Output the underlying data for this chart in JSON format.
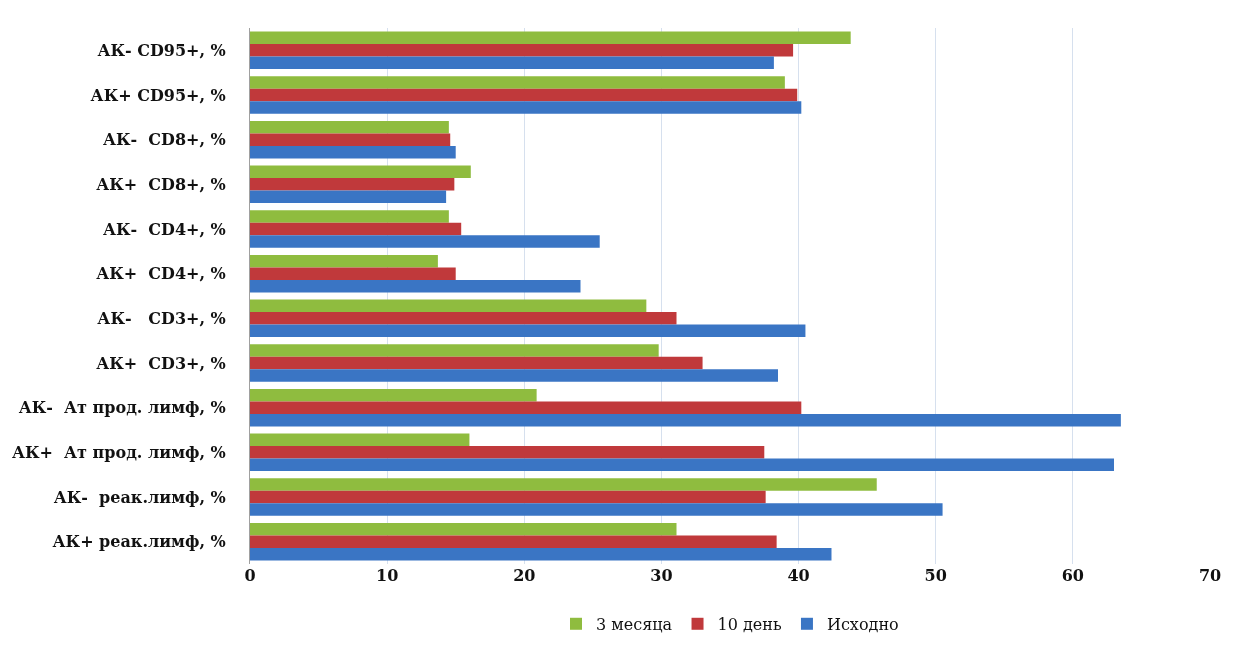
{
  "chart_data": {
    "type": "bar",
    "orientation": "horizontal",
    "categories": [
      "АК- CD95+, %",
      "АК+ CD95+, %",
      "АК-  CD8+, %",
      "АК+  CD8+, %",
      "АК-  CD4+, %",
      "АК+  CD4+, %",
      "АК-   CD3+, %",
      "АК+  CD3+, %",
      "АК-  Ат прод. лимф, %",
      "АК+  Ат прод. лимф, %",
      "АК-  реак.лимф, %",
      "АК+ реак.лимф, %"
    ],
    "series": [
      {
        "name": "3 месяца",
        "color": "#8fbc3f",
        "values": [
          43.8,
          39.0,
          14.5,
          16.1,
          14.5,
          13.7,
          28.9,
          29.8,
          20.9,
          16.0,
          45.7,
          31.1
        ]
      },
      {
        "name": "10 день",
        "color": "#c0393b",
        "values": [
          39.6,
          39.9,
          14.6,
          14.9,
          15.4,
          15.0,
          31.1,
          33.0,
          40.2,
          37.5,
          37.6,
          38.4
        ]
      },
      {
        "name": "Исходно",
        "color": "#3a75c4",
        "values": [
          38.2,
          40.2,
          15.0,
          14.3,
          25.5,
          24.1,
          40.5,
          38.5,
          63.5,
          63.0,
          50.5,
          42.4
        ]
      }
    ],
    "xlim": [
      0,
      70
    ],
    "xticks": [
      0,
      10,
      20,
      30,
      40,
      50,
      60,
      70
    ],
    "grid": "x",
    "legend": "bottom"
  }
}
